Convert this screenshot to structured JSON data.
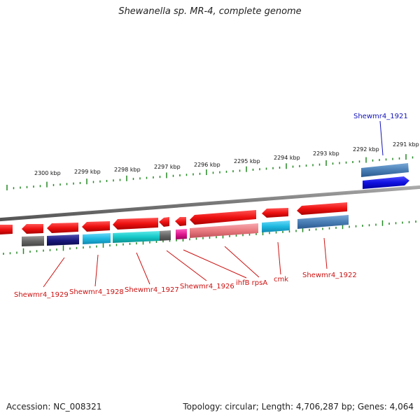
{
  "title": "Shewanella sp. MR-4, complete genome",
  "footer": {
    "accession": "Accession: NC_008321",
    "summary": "Topology: circular; Length: 4,706,287 bp; Genes: 4,064"
  },
  "colors": {
    "cds_red": "#ee1111",
    "blue_gene": "#4a7fb5",
    "dark_blue_gene": "#1010e0",
    "cyan_gene": "#1fb8e0",
    "teal_gene": "#15c8c8",
    "gray_gene": "#666666",
    "navy_gene": "#1a1a80",
    "magenta_gene": "#e01890",
    "pink_gene": "#e87a80",
    "tick_green": "#228822",
    "label_red": "#cc1111",
    "label_blue": "#1111bb"
  },
  "ruler_labels": [
    "2300 kbp",
    "2299 kbp",
    "2298 kbp",
    "2297 kbp",
    "2296 kbp",
    "2295 kbp",
    "2294 kbp",
    "2293 kbp",
    "2292 kbp",
    "2291 kbp"
  ],
  "gene_labels": [
    {
      "text": "Shewmr4_1929",
      "color": "red"
    },
    {
      "text": "Shewmr4_1928",
      "color": "red"
    },
    {
      "text": "Shewmr4_1927",
      "color": "red"
    },
    {
      "text": "Shewmr4_1926",
      "color": "red"
    },
    {
      "text": "ihfB rpsA",
      "color": "red"
    },
    {
      "text": "cmk",
      "color": "red"
    },
    {
      "text": "Shewmr4_1922",
      "color": "red"
    },
    {
      "text": "Shewmr4_1921",
      "color": "blue"
    }
  ]
}
